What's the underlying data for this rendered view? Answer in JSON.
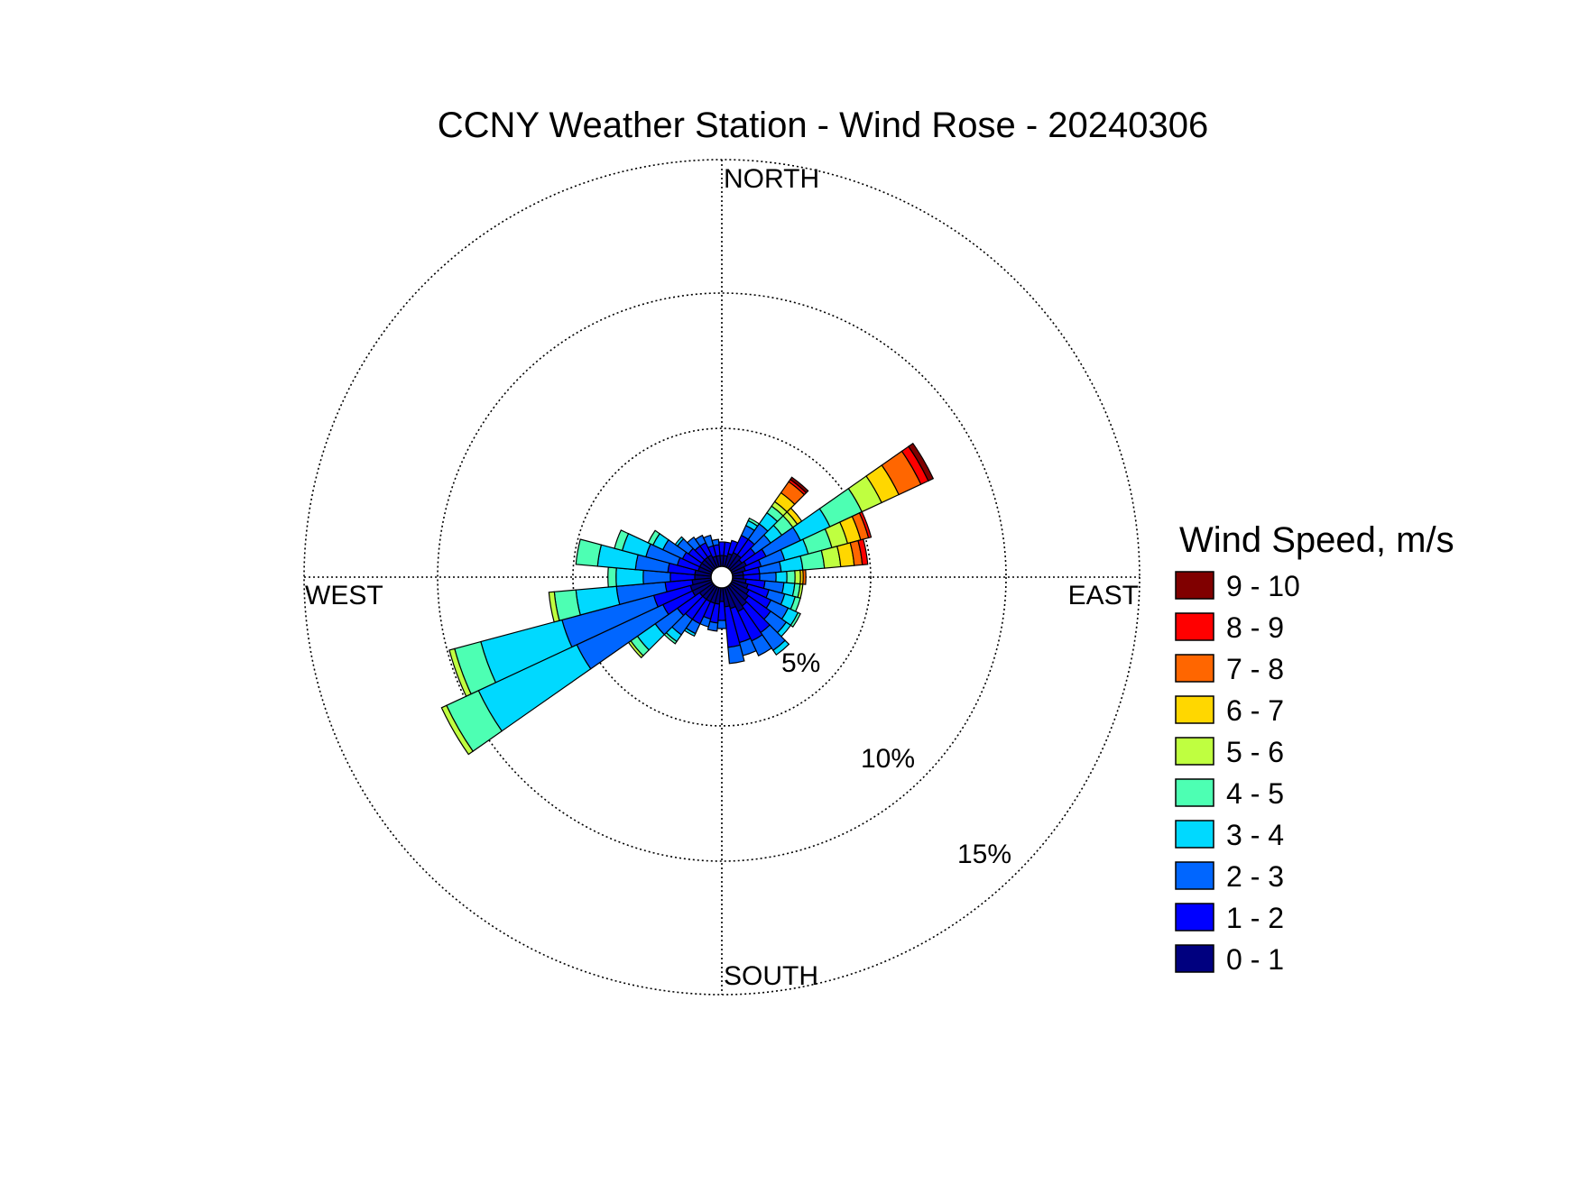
{
  "chart_data": {
    "type": "windrose",
    "title": "CCNY Weather Station - Wind Rose - 20240306",
    "direction_labels": {
      "north": "NORTH",
      "south": "SOUTH",
      "east": "EAST",
      "west": "WEST"
    },
    "radial_unit": "%",
    "radial_ticks": [
      {
        "value": 5,
        "label": "5%"
      },
      {
        "value": 10,
        "label": "10%"
      },
      {
        "value": 15,
        "label": "15%"
      }
    ],
    "radial_max": 15,
    "grid": true,
    "legend": {
      "title": "Wind Speed, m/s",
      "placement": "right",
      "bins": [
        {
          "label": "9 - 10",
          "color": "#800000"
        },
        {
          "label": "8 - 9",
          "color": "#ff0000"
        },
        {
          "label": "7 - 8",
          "color": "#ff6600"
        },
        {
          "label": "6 - 7",
          "color": "#ffd700"
        },
        {
          "label": "5 - 6",
          "color": "#bfff40"
        },
        {
          "label": "4 - 5",
          "color": "#4dffb3"
        },
        {
          "label": "3 - 4",
          "color": "#00d9ff"
        },
        {
          "label": "2 - 3",
          "color": "#0066ff"
        },
        {
          "label": "1 - 2",
          "color": "#0000ff"
        },
        {
          "label": "0 - 1",
          "color": "#00007f"
        }
      ]
    },
    "speed_bins_ascending": [
      "0 - 1",
      "1 - 2",
      "2 - 3",
      "3 - 4",
      "4 - 5",
      "5 - 6",
      "6 - 7",
      "7 - 8",
      "8 - 9",
      "9 - 10"
    ],
    "direction_bin_width_deg": 10,
    "sectors": [
      {
        "dir": 0,
        "cum": [
          0.4,
          0.9
        ]
      },
      {
        "dir": 10,
        "cum": [
          0.4,
          0.9
        ]
      },
      {
        "dir": 20,
        "cum": [
          0.5,
          1.0
        ]
      },
      {
        "dir": 30,
        "cum": [
          0.6,
          1.3,
          1.7,
          1.9,
          2.0
        ]
      },
      {
        "dir": 40,
        "cum": [
          0.6,
          1.3,
          2.0,
          2.5,
          2.8,
          3.0,
          3.4,
          3.9,
          4.0,
          4.1
        ]
      },
      {
        "dir": 50,
        "cum": [
          0.5,
          1.1,
          1.8,
          2.3,
          2.8,
          3.0,
          3.2
        ]
      },
      {
        "dir": 60,
        "cum": [
          0.6,
          1.4,
          2.8,
          4.0,
          5.3,
          6.1,
          6.8,
          7.7,
          8.0,
          8.2
        ]
      },
      {
        "dir": 70,
        "cum": [
          0.5,
          1.1,
          2.0,
          2.9,
          3.8,
          4.4,
          4.9,
          5.2,
          5.3
        ]
      },
      {
        "dir": 80,
        "cum": [
          0.4,
          1.0,
          1.8,
          2.6,
          3.4,
          4.0,
          4.5,
          4.8,
          5.0
        ]
      },
      {
        "dir": 90,
        "cum": [
          0.4,
          1.0,
          1.6,
          2.0,
          2.3,
          2.5,
          2.6,
          2.7
        ]
      },
      {
        "dir": 100,
        "cum": [
          0.5,
          1.2,
          1.9,
          2.3,
          2.5,
          2.6
        ]
      },
      {
        "dir": 110,
        "cum": [
          0.6,
          1.4,
          2.0,
          2.4,
          2.6
        ]
      },
      {
        "dir": 120,
        "cum": [
          0.7,
          1.6,
          2.3,
          2.7,
          2.8
        ]
      },
      {
        "dir": 130,
        "cum": [
          0.8,
          1.8,
          2.5,
          2.7
        ]
      },
      {
        "dir": 140,
        "cum": [
          0.9,
          2.1,
          2.9,
          3.1
        ]
      },
      {
        "dir": 150,
        "cum": [
          1.0,
          2.2,
          2.8
        ]
      },
      {
        "dir": 160,
        "cum": [
          0.8,
          2.1,
          2.6
        ]
      },
      {
        "dir": 170,
        "cum": [
          0.7,
          2.2,
          2.8
        ]
      },
      {
        "dir": 180,
        "cum": [
          0.5,
          1.2,
          1.5
        ]
      },
      {
        "dir": 190,
        "cum": [
          0.6,
          1.3,
          1.6
        ]
      },
      {
        "dir": 200,
        "cum": [
          0.6,
          1.2,
          1.5
        ]
      },
      {
        "dir": 210,
        "cum": [
          0.6,
          1.5,
          1.9,
          2.0
        ]
      },
      {
        "dir": 220,
        "cum": [
          0.6,
          1.5,
          2.2,
          2.5,
          2.6
        ]
      },
      {
        "dir": 230,
        "cum": [
          0.6,
          1.6,
          2.6,
          3.4,
          3.7,
          3.8
        ]
      },
      {
        "dir": 240,
        "cum": [
          0.8,
          2.0,
          5.5,
          9.5,
          10.8,
          11.0
        ]
      },
      {
        "dir": 250,
        "cum": [
          0.8,
          2.2,
          5.7,
          8.8,
          9.8,
          10.0
        ]
      },
      {
        "dir": 260,
        "cum": [
          0.7,
          1.7,
          3.5,
          5.0,
          5.8,
          6.0
        ]
      },
      {
        "dir": 270,
        "cum": [
          0.6,
          1.5,
          2.5,
          3.5,
          3.8
        ]
      },
      {
        "dir": 280,
        "cum": [
          0.6,
          1.6,
          2.8,
          4.2,
          5.0
        ]
      },
      {
        "dir": 290,
        "cum": [
          0.5,
          1.3,
          2.5,
          3.4,
          3.7
        ]
      },
      {
        "dir": 300,
        "cum": [
          0.5,
          1.2,
          2.0,
          2.4,
          2.6
        ]
      },
      {
        "dir": 310,
        "cum": [
          0.5,
          1.1,
          1.6,
          1.7
        ]
      },
      {
        "dir": 320,
        "cum": [
          0.5,
          1.0,
          1.4
        ]
      },
      {
        "dir": 330,
        "cum": [
          0.5,
          1.0,
          1.3
        ]
      },
      {
        "dir": 340,
        "cum": [
          0.4,
          0.8,
          1.2
        ]
      },
      {
        "dir": 350,
        "cum": [
          0.4,
          0.8,
          1.0
        ]
      }
    ]
  }
}
